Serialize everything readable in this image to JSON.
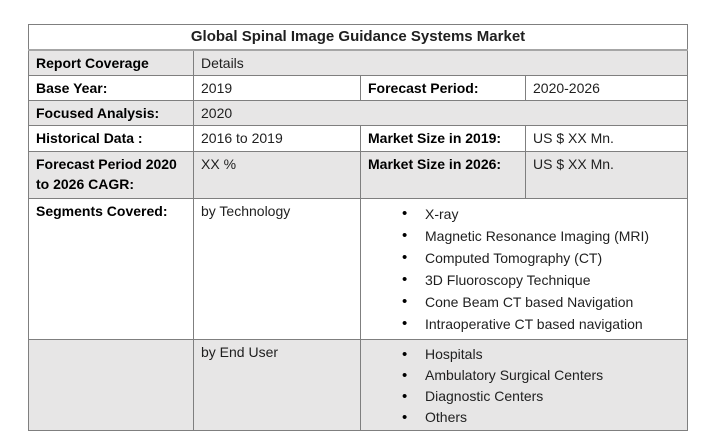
{
  "title": "Global Spinal Image Guidance Systems Market",
  "colors": {
    "row_band": "#E7E6E6",
    "border_inner": "#7F7F7F",
    "border_outer": "#4D4D4D",
    "title_divider": "#A6A6A6"
  },
  "table": {
    "coverage": {
      "label": "Report Coverage",
      "value": "Details"
    },
    "base_year": {
      "label": "Base Year:",
      "value": "2019"
    },
    "forecast_period": {
      "label": "Forecast Period:",
      "value": "2020-2026"
    },
    "focused_analysis": {
      "label": "Focused Analysis:",
      "value": "2020"
    },
    "historical_data": {
      "label": "Historical Data :",
      "value": "2016 to 2019"
    },
    "market_size_2019": {
      "label": "Market Size in 2019:",
      "value": "US $ XX Mn."
    },
    "cagr": {
      "label": "Forecast Period 2020 to 2026 CAGR:",
      "value": "XX %"
    },
    "market_size_2026": {
      "label": "Market Size in 2026:",
      "value": "US $ XX Mn."
    },
    "segments": {
      "label": "Segments Covered:",
      "groups": [
        {
          "name": "by Technology",
          "items": [
            "X-ray",
            "Magnetic Resonance Imaging (MRI)",
            "Computed Tomography (CT)",
            "3D Fluoroscopy Technique",
            "Cone Beam CT based Navigation",
            "Intraoperative CT based navigation"
          ]
        },
        {
          "name": "by End User",
          "items": [
            "Hospitals",
            "Ambulatory Surgical Centers",
            "Diagnostic Centers",
            "Others"
          ]
        }
      ]
    }
  }
}
